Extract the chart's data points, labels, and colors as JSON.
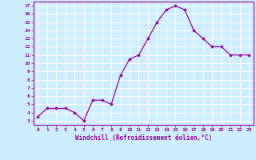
{
  "x": [
    0,
    1,
    2,
    3,
    4,
    5,
    6,
    7,
    8,
    9,
    10,
    11,
    12,
    13,
    14,
    15,
    16,
    17,
    18,
    19,
    20,
    21,
    22,
    23
  ],
  "y": [
    3.5,
    4.5,
    4.5,
    4.5,
    4.0,
    3.0,
    5.5,
    5.5,
    5.0,
    8.5,
    10.5,
    11.0,
    13.0,
    15.0,
    16.5,
    17.0,
    16.5,
    14.0,
    13.0,
    12.0,
    12.0,
    11.0,
    11.0,
    11.0
  ],
  "line_color": "#990099",
  "marker": "D",
  "marker_size": 1.8,
  "bg_color": "#cceeff",
  "grid_color": "#ffffff",
  "xlabel": "Windchill (Refroidissement éolien,°C)",
  "tick_color": "#990099",
  "xlim": [
    -0.5,
    23.5
  ],
  "ylim": [
    2.5,
    17.5
  ],
  "yticks": [
    3,
    4,
    5,
    6,
    7,
    8,
    9,
    10,
    11,
    12,
    13,
    14,
    15,
    16,
    17
  ],
  "xtick_labels": [
    "0",
    "1",
    "2",
    "3",
    "4",
    "5",
    "6",
    "7",
    "8",
    "9",
    "10",
    "11",
    "12",
    "13",
    "14",
    "15",
    "16",
    "17",
    "18",
    "19",
    "20",
    "21",
    "22",
    "23"
  ],
  "spine_color": "#990099"
}
